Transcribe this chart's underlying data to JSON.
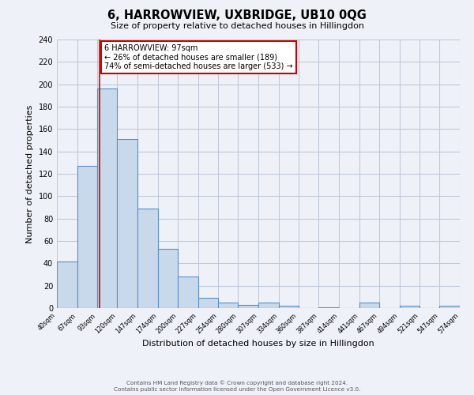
{
  "title": "6, HARROWVIEW, UXBRIDGE, UB10 0QG",
  "subtitle": "Size of property relative to detached houses in Hillingdon",
  "xlabel": "Distribution of detached houses by size in Hillingdon",
  "ylabel": "Number of detached properties",
  "bar_edges": [
    40,
    67,
    93,
    120,
    147,
    174,
    200,
    227,
    254,
    280,
    307,
    334,
    360,
    387,
    414,
    441,
    467,
    494,
    521,
    547,
    574
  ],
  "bar_heights": [
    42,
    127,
    196,
    151,
    89,
    53,
    28,
    9,
    5,
    3,
    5,
    2,
    0,
    1,
    0,
    5,
    0,
    2,
    0,
    2
  ],
  "bar_color": "#c9d9ec",
  "bar_edge_color": "#5b8fc5",
  "bar_linewidth": 0.8,
  "grid_color": "#c0c8d8",
  "background_color": "#eef2f8",
  "red_line_x": 97,
  "ylim": [
    0,
    240
  ],
  "yticks": [
    0,
    20,
    40,
    60,
    80,
    100,
    120,
    140,
    160,
    180,
    200,
    220,
    240
  ],
  "annot_title": "6 HARROWVIEW: 97sqm",
  "annot_line1": "← 26% of detached houses are smaller (189)",
  "annot_line2": "74% of semi-detached houses are larger (533) →",
  "annot_box_color": "#ffffff",
  "annot_box_edge_color": "#cc0000",
  "footer1": "Contains HM Land Registry data © Crown copyright and database right 2024.",
  "footer2": "Contains public sector information licensed under the Open Government Licence v3.0.",
  "tick_labels": [
    "40sqm",
    "67sqm",
    "93sqm",
    "120sqm",
    "147sqm",
    "174sqm",
    "200sqm",
    "227sqm",
    "254sqm",
    "280sqm",
    "307sqm",
    "334sqm",
    "360sqm",
    "387sqm",
    "414sqm",
    "441sqm",
    "467sqm",
    "494sqm",
    "521sqm",
    "547sqm",
    "574sqm"
  ]
}
